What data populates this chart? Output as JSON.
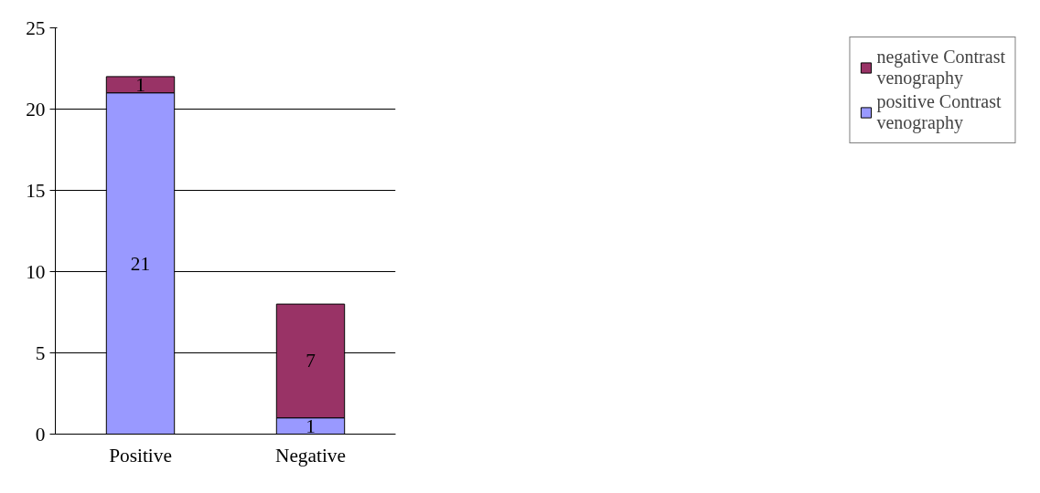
{
  "chart_data": {
    "type": "bar",
    "stacked": true,
    "categories": [
      "Positive",
      "Negative"
    ],
    "series": [
      {
        "name": "positive Contrast venography",
        "color": "#9999ff",
        "values": [
          21,
          1
        ]
      },
      {
        "name": "negative Contrast venography",
        "color": "#993366",
        "values": [
          1,
          7
        ]
      }
    ],
    "ylim": [
      0,
      25
    ],
    "yticks": [
      0,
      5,
      10,
      15,
      20,
      25
    ],
    "grid": "y",
    "legend": "right",
    "data_labels": true
  }
}
